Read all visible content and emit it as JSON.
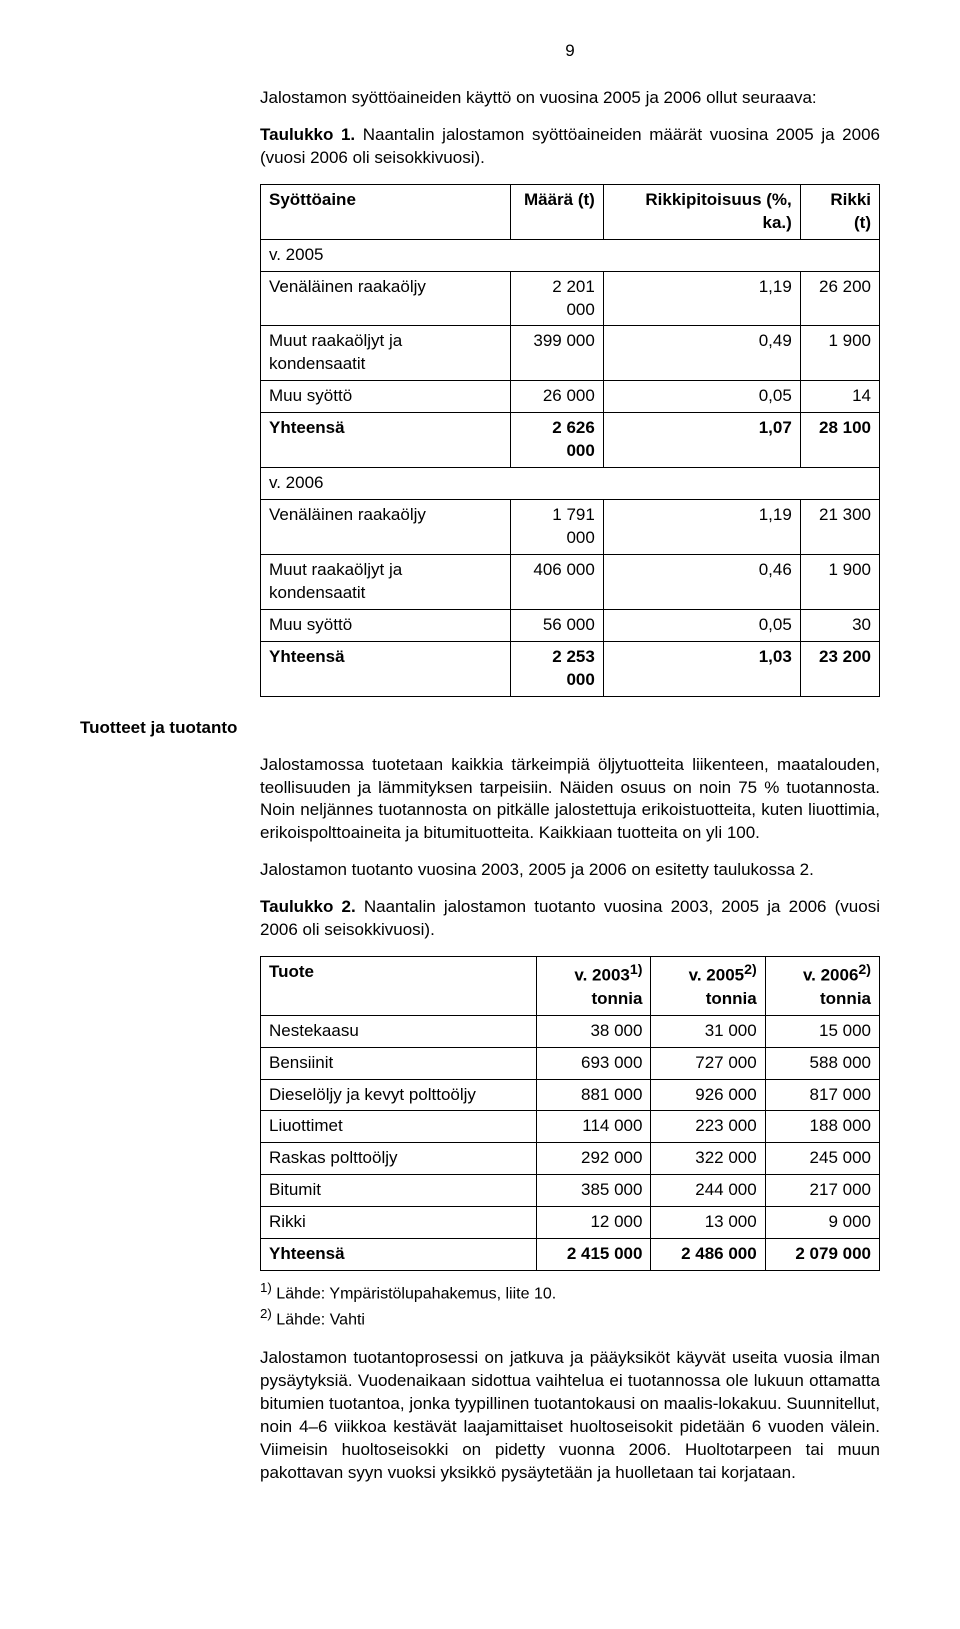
{
  "page_number": "9",
  "intro_line": "Jalostamon syöttöaineiden käyttö on vuosina 2005 ja 2006 ollut seuraava:",
  "table1_caption_label": "Taulukko 1.",
  "table1_caption_text": " Naantalin jalostamon syöttöaineiden määrät vuosina 2005 ja 2006 (vuosi 2006 oli seisokkivuosi).",
  "t1": {
    "headers": {
      "c0": "Syöttöaine",
      "c1": "Määrä (t)",
      "c2": "Rikkipitoisuus (%, ka.)",
      "c3": "Rikki (t)"
    },
    "row_y2005": "v. 2005",
    "rows2005": [
      {
        "label": "Venäläinen raakaöljy",
        "amount": "2 201 000",
        "sulfur_pct": "1,19",
        "sulfur_t": "26 200"
      },
      {
        "label": "Muut raakaöljyt ja kondensaatit",
        "amount": "399 000",
        "sulfur_pct": "0,49",
        "sulfur_t": "1 900"
      },
      {
        "label": "Muu syöttö",
        "amount": "26 000",
        "sulfur_pct": "0,05",
        "sulfur_t": "14"
      }
    ],
    "total2005": {
      "label": "Yhteensä",
      "amount": "2 626 000",
      "sulfur_pct": "1,07",
      "sulfur_t": "28 100"
    },
    "row_y2006": "v. 2006",
    "rows2006": [
      {
        "label": "Venäläinen raakaöljy",
        "amount": "1 791 000",
        "sulfur_pct": "1,19",
        "sulfur_t": "21 300"
      },
      {
        "label": "Muut raakaöljyt ja kondensaatit",
        "amount": "406 000",
        "sulfur_pct": "0,46",
        "sulfur_t": "1 900"
      },
      {
        "label": "Muu syöttö",
        "amount": "56 000",
        "sulfur_pct": "0,05",
        "sulfur_t": "30"
      }
    ],
    "total2006": {
      "label": "Yhteensä",
      "amount": "2 253 000",
      "sulfur_pct": "1,03",
      "sulfur_t": "23 200"
    }
  },
  "section_heading": "Tuotteet ja tuotanto",
  "para1": "Jalostamossa tuotetaan kaikkia tärkeimpiä öljytuotteita liikenteen, maatalouden, teollisuuden ja lämmityksen tarpeisiin. Näiden osuus on noin 75 % tuotannosta. Noin neljännes tuotannosta on pitkälle jalostettuja erikoistuotteita, kuten liuottimia, erikoispolttoaineita ja bitumituotteita. Kaikkiaan tuotteita on yli 100.",
  "para2": "Jalostamon tuotanto vuosina 2003, 2005 ja 2006 on esitetty taulukossa 2.",
  "table2_caption_label": "Taulukko 2.",
  "table2_caption_text": " Naantalin jalostamon tuotanto vuosina 2003, 2005 ja 2006 (vuosi 2006 oli seisokkivuosi).",
  "t2": {
    "headers": {
      "c0": "Tuote",
      "c1a": "v. 2003",
      "c1sup": "1)",
      "c1b": "tonnia",
      "c2a": "v. 2005",
      "c2sup": "2)",
      "c2b": "tonnia",
      "c3a": "v. 2006",
      "c3sup": "2)",
      "c3b": "tonnia"
    },
    "rows": [
      {
        "label": "Nestekaasu",
        "y2003": "38 000",
        "y2005": "31 000",
        "y2006": "15 000"
      },
      {
        "label": "Bensiinit",
        "y2003": "693 000",
        "y2005": "727 000",
        "y2006": "588 000"
      },
      {
        "label": "Dieselöljy ja kevyt polttoöljy",
        "y2003": "881 000",
        "y2005": "926 000",
        "y2006": "817 000"
      },
      {
        "label": "Liuottimet",
        "y2003": "114 000",
        "y2005": "223 000",
        "y2006": "188 000"
      },
      {
        "label": "Raskas polttoöljy",
        "y2003": "292 000",
        "y2005": "322 000",
        "y2006": "245 000"
      },
      {
        "label": "Bitumit",
        "y2003": "385 000",
        "y2005": "244 000",
        "y2006": "217 000"
      },
      {
        "label": "Rikki",
        "y2003": "12 000",
        "y2005": "13 000",
        "y2006": "9 000"
      }
    ],
    "total": {
      "label": "Yhteensä",
      "y2003": "2 415 000",
      "y2005": "2 486 000",
      "y2006": "2 079 000"
    }
  },
  "footnote1_sup": "1)",
  "footnote1_text": " Lähde: Ympäristölupahakemus, liite 10.",
  "footnote2_sup": "2)",
  "footnote2_text": " Lähde: Vahti",
  "para3": "Jalostamon tuotantoprosessi on jatkuva ja pääyksiköt käyvät useita vuosia ilman pysäytyksiä. Vuodenaikaan sidottua vaihtelua ei tuotannossa ole lukuun ottamatta bitumien tuotantoa, jonka tyypillinen tuotantokausi on maalis-lokakuu. Suunnitellut, noin 4–6 viikkoa kestävät laajamittaiset huoltoseisokit pidetään 6 vuoden välein. Viimeisin huoltoseisokki on pidetty vuonna 2006. Huoltotarpeen tai muun pakottavan syyn vuoksi yksikkö pysäytetään ja huolletaan tai korjataan."
}
